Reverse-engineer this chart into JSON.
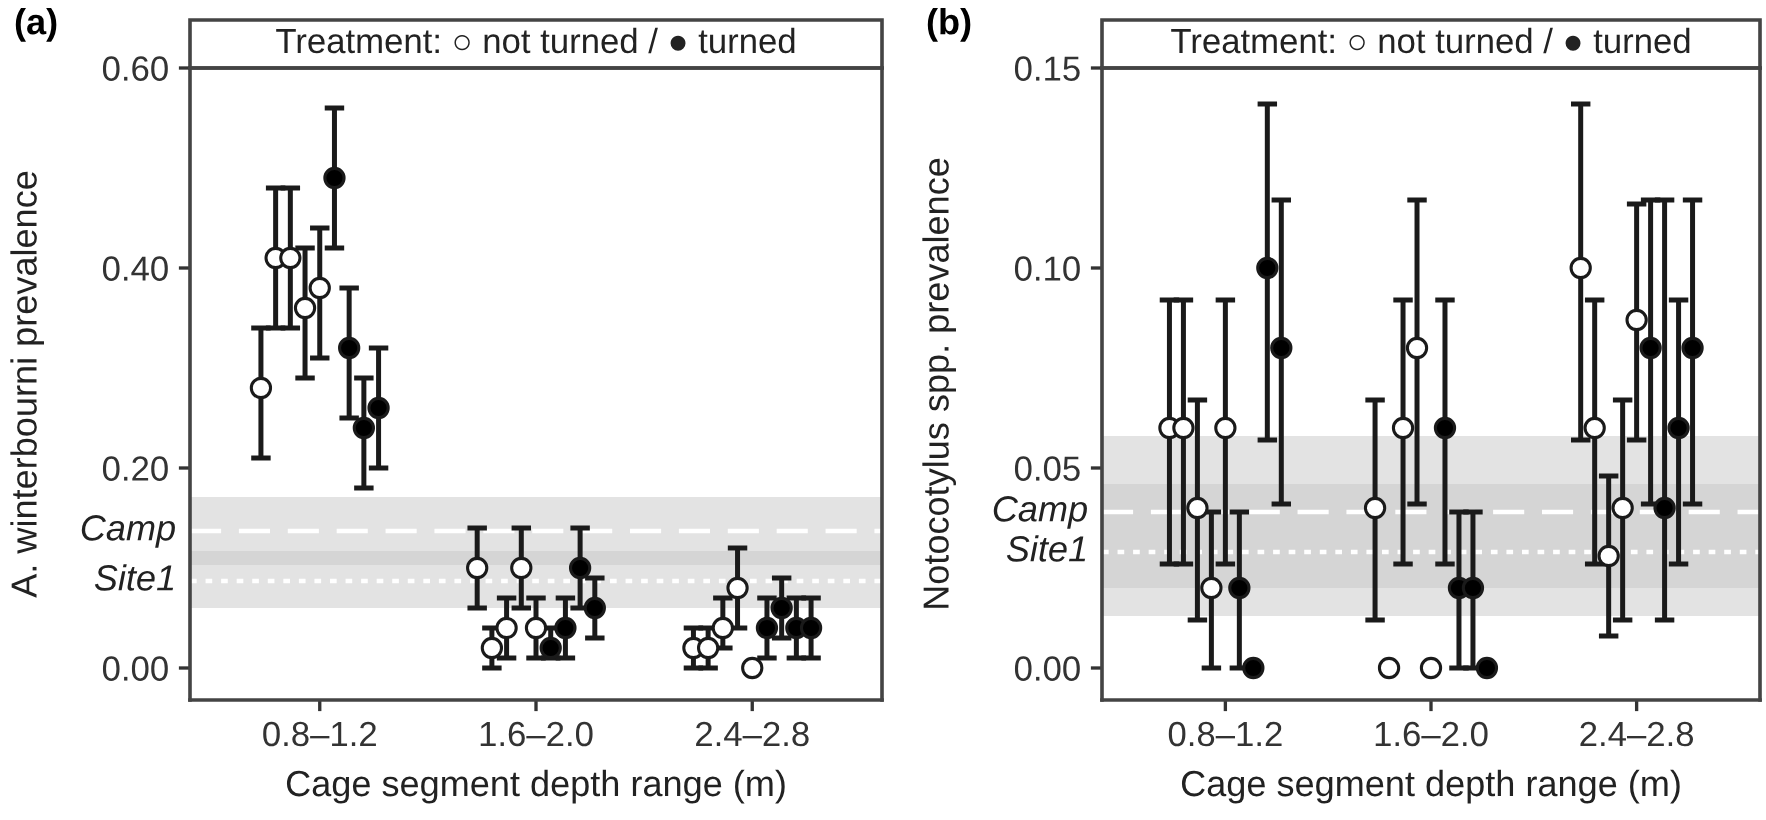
{
  "chart_data": [
    {
      "type": "scatter",
      "title": "(a)",
      "subtitle": "Treatment: ○ not turned / ● turned",
      "xlabel": "Cage segment depth range (m)",
      "ylabel": "A. winterbourni prevalence",
      "categories": [
        "0.8–1.2",
        "1.6–2.0",
        "2.4–2.8"
      ],
      "marker": "circle",
      "ylim": [
        -0.032,
        0.6
      ],
      "yticks": [
        {
          "value": 0,
          "label": "0.00"
        },
        {
          "value": 0.2,
          "label": "0.20"
        },
        {
          "value": 0.4,
          "label": "0.40"
        },
        {
          "value": 0.6,
          "label": "0.60"
        }
      ],
      "bands": [
        {
          "axis": "y",
          "from": 0.103,
          "to": 0.171,
          "color": "#c8c8c8"
        },
        {
          "axis": "y",
          "from": 0.06,
          "to": 0.117,
          "color": "#c8c8c8"
        }
      ],
      "ref_lines": [
        {
          "axis": "y",
          "value": 0.137,
          "label": "Camp",
          "color": "#ffffff",
          "line_style": "dashed"
        },
        {
          "axis": "y",
          "value": 0.087,
          "label": "Site1",
          "color": "#ffffff",
          "line_style": "dotted"
        }
      ],
      "series": [
        {
          "color": "#ffffff",
          "values": [
            0.28,
            0.1,
            0.02
          ],
          "errors": [
            [
              0.21,
              0.34
            ],
            [
              0.06,
              0.14
            ],
            [
              0.0,
              0.04
            ]
          ]
        },
        {
          "color": "#ffffff",
          "values": [
            0.41,
            0.02,
            0.02
          ],
          "errors": [
            [
              0.34,
              0.48
            ],
            [
              0.0,
              0.04
            ],
            [
              0.0,
              0.04
            ]
          ]
        },
        {
          "color": "#ffffff",
          "values": [
            0.41,
            0.04,
            0.04
          ],
          "errors": [
            [
              0.34,
              0.48
            ],
            [
              0.01,
              0.07
            ],
            [
              0.02,
              0.07
            ]
          ]
        },
        {
          "color": "#ffffff",
          "values": [
            0.36,
            0.1,
            0.08
          ],
          "errors": [
            [
              0.29,
              0.42
            ],
            [
              0.06,
              0.14
            ],
            [
              0.04,
              0.12
            ]
          ]
        },
        {
          "color": "#ffffff",
          "values": [
            0.38,
            0.04,
            0.0
          ],
          "errors": [
            [
              0.31,
              0.44
            ],
            [
              0.01,
              0.07
            ],
            null
          ]
        },
        {
          "color": "#000000",
          "values": [
            0.49,
            0.02,
            0.04
          ],
          "errors": [
            [
              0.42,
              0.56
            ],
            [
              0.01,
              0.04
            ],
            [
              0.01,
              0.07
            ]
          ]
        },
        {
          "color": "#000000",
          "values": [
            0.32,
            0.04,
            0.06
          ],
          "errors": [
            [
              0.25,
              0.38
            ],
            [
              0.01,
              0.07
            ],
            [
              0.03,
              0.09
            ]
          ]
        },
        {
          "color": "#000000",
          "values": [
            0.24,
            0.1,
            0.04
          ],
          "errors": [
            [
              0.18,
              0.29
            ],
            [
              0.06,
              0.14
            ],
            [
              0.01,
              0.07
            ]
          ]
        },
        {
          "color": "#000000",
          "values": [
            0.26,
            0.06,
            0.04
          ],
          "errors": [
            [
              0.2,
              0.32
            ],
            [
              0.03,
              0.09
            ],
            [
              0.01,
              0.07
            ]
          ]
        }
      ]
    },
    {
      "type": "scatter",
      "title": "(b)",
      "subtitle": "Treatment: ○ not turned / ● turned",
      "xlabel": "Cage segment depth range (m)",
      "ylabel": "Notocotylus spp. prevalence",
      "categories": [
        "0.8–1.2",
        "1.6–2.0",
        "2.4–2.8"
      ],
      "marker": "circle",
      "ylim": [
        -0.008,
        0.15
      ],
      "yticks": [
        {
          "value": 0,
          "label": "0.00"
        },
        {
          "value": 0.05,
          "label": "0.05"
        },
        {
          "value": 0.1,
          "label": "0.10"
        },
        {
          "value": 0.15,
          "label": "0.15"
        }
      ],
      "bands": [
        {
          "axis": "y",
          "from": 0.02,
          "to": 0.058,
          "color": "#c8c8c8"
        },
        {
          "axis": "y",
          "from": 0.013,
          "to": 0.046,
          "color": "#c8c8c8"
        }
      ],
      "ref_lines": [
        {
          "axis": "y",
          "value": 0.039,
          "label": "Camp",
          "color": "#ffffff",
          "line_style": "dashed"
        },
        {
          "axis": "y",
          "value": 0.029,
          "label": "Site1",
          "color": "#ffffff",
          "line_style": "dotted"
        }
      ],
      "series": [
        {
          "color": "#ffffff",
          "values": [
            0.06,
            0.04,
            0.1
          ],
          "errors": [
            [
              0.026,
              0.092
            ],
            [
              0.012,
              0.067
            ],
            [
              0.057,
              0.141
            ]
          ]
        },
        {
          "color": "#ffffff",
          "values": [
            0.06,
            0.0,
            0.06
          ],
          "errors": [
            [
              0.026,
              0.092
            ],
            null,
            [
              0.026,
              0.092
            ]
          ]
        },
        {
          "color": "#ffffff",
          "values": [
            0.04,
            0.06,
            0.028
          ],
          "errors": [
            [
              0.012,
              0.067
            ],
            [
              0.026,
              0.092
            ],
            [
              0.008,
              0.048
            ]
          ]
        },
        {
          "color": "#ffffff",
          "values": [
            0.02,
            0.08,
            0.04
          ],
          "errors": [
            [
              0.0,
              0.039
            ],
            [
              0.041,
              0.117
            ],
            [
              0.012,
              0.067
            ]
          ]
        },
        {
          "color": "#ffffff",
          "values": [
            0.06,
            0.0,
            0.087
          ],
          "errors": [
            [
              0.026,
              0.092
            ],
            null,
            [
              0.057,
              0.116
            ]
          ]
        },
        {
          "color": "#000000",
          "values": [
            0.02,
            0.06,
            0.08
          ],
          "errors": [
            [
              0.0,
              0.039
            ],
            [
              0.026,
              0.092
            ],
            [
              0.041,
              0.117
            ]
          ]
        },
        {
          "color": "#000000",
          "values": [
            0.0,
            0.02,
            0.04
          ],
          "errors": [
            null,
            [
              0.0,
              0.039
            ],
            [
              0.012,
              0.117
            ]
          ]
        },
        {
          "color": "#000000",
          "values": [
            0.1,
            0.02,
            0.06
          ],
          "errors": [
            [
              0.057,
              0.141
            ],
            [
              0.0,
              0.039
            ],
            [
              0.026,
              0.092
            ]
          ]
        },
        {
          "color": "#000000",
          "values": [
            0.08,
            0.0,
            0.08
          ],
          "errors": [
            [
              0.041,
              0.117
            ],
            null,
            [
              0.041,
              0.117
            ]
          ]
        }
      ]
    }
  ]
}
